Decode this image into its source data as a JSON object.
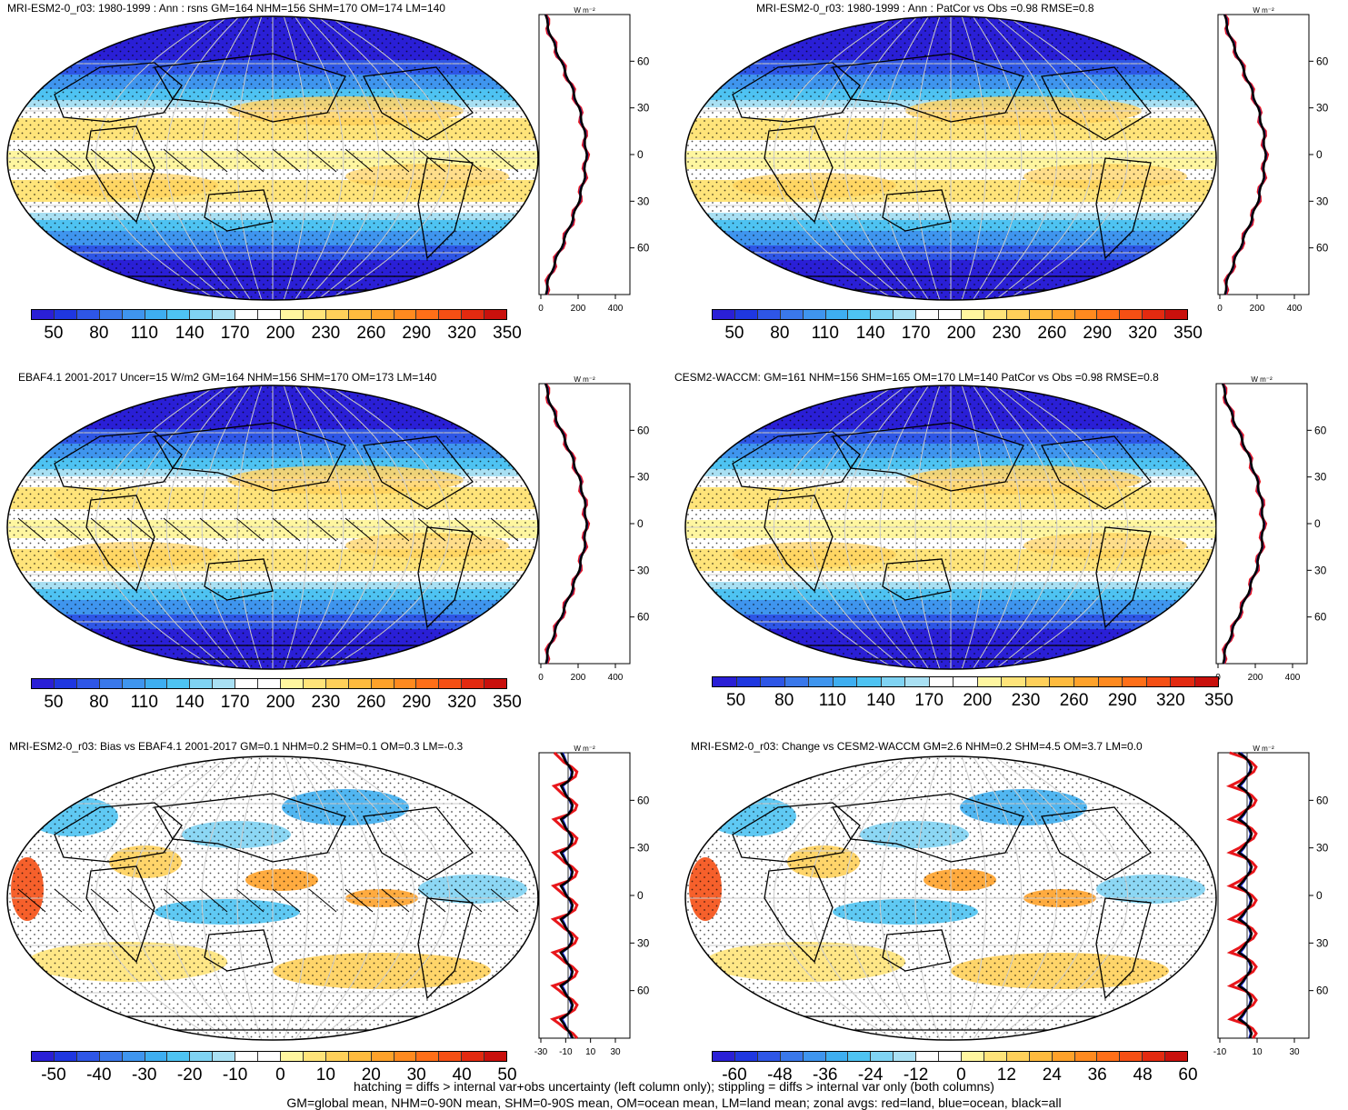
{
  "panels": [
    {
      "id": "p1",
      "title": "MRI-ESM2-0_r03: 1980-1999 : Ann : rsns GM=164 NHM=156 SHM=170 OM=174 LM=140",
      "palette": "abs",
      "colorbar_labels": [
        "50",
        "80",
        "110",
        "140",
        "170",
        "200",
        "230",
        "260",
        "290",
        "320",
        "350"
      ],
      "zonal_units": "W m⁻²",
      "zonal_xticks": [
        "0",
        "200",
        "400"
      ],
      "zonal_yticks": [
        "60N",
        "30N",
        "0",
        "30S",
        "60S"
      ],
      "hatching": true
    },
    {
      "id": "p2",
      "title": "MRI-ESM2-0_r03: 1980-1999 : Ann : PatCor vs Obs =0.98 RMSE=0.8",
      "palette": "abs",
      "colorbar_labels": [
        "50",
        "80",
        "110",
        "140",
        "170",
        "200",
        "230",
        "260",
        "290",
        "320",
        "350"
      ],
      "zonal_units": "W m⁻²",
      "zonal_xticks": [
        "0",
        "200",
        "400"
      ],
      "zonal_yticks": [
        "60N",
        "30N",
        "0",
        "30S",
        "60S"
      ],
      "hatching": false
    },
    {
      "id": "p3",
      "title": "EBAF4.1 2001-2017 Uncer=15 W/m2 GM=164 NHM=156 SHM=170 OM=173 LM=140",
      "palette": "abs",
      "colorbar_labels": [
        "50",
        "80",
        "110",
        "140",
        "170",
        "200",
        "230",
        "260",
        "290",
        "320",
        "350"
      ],
      "zonal_units": "W m⁻²",
      "zonal_xticks": [
        "0",
        "200",
        "400"
      ],
      "zonal_yticks": [
        "60N",
        "30N",
        "0",
        "30S",
        "60S"
      ],
      "hatching": true
    },
    {
      "id": "p4",
      "title": "CESM2-WACCM: GM=161 NHM=156 SHM=165 OM=170 LM=140 PatCor vs Obs =0.98 RMSE=0.8",
      "palette": "abs",
      "colorbar_labels": [
        "50",
        "80",
        "110",
        "140",
        "170",
        "200",
        "230",
        "260",
        "290",
        "320",
        "350"
      ],
      "zonal_units": "W m⁻²",
      "zonal_xticks": [
        "0",
        "200",
        "400"
      ],
      "zonal_yticks": [
        "60N",
        "30N",
        "0",
        "30S",
        "60S"
      ],
      "hatching": false
    },
    {
      "id": "p5",
      "title": "MRI-ESM2-0_r03: Bias vs EBAF4.1 2001-2017 GM=0.1 NHM=0.2 SHM=0.1 OM=0.3 LM=-0.3",
      "palette": "diff",
      "colorbar_labels": [
        "-50",
        "-40",
        "-30",
        "-20",
        "-10",
        "0",
        "10",
        "20",
        "30",
        "40",
        "50"
      ],
      "zonal_units": "W m⁻²",
      "zonal_xticks": [
        "-30",
        "-10",
        "10",
        "30"
      ],
      "zonal_yticks": [
        "60N",
        "30N",
        "0",
        "30S",
        "60S"
      ],
      "hatching": true
    },
    {
      "id": "p6",
      "title": "MRI-ESM2-0_r03: Change vs CESM2-WACCM GM=2.6 NHM=0.2 SHM=4.5 OM=3.7 LM=0.0",
      "palette": "diff",
      "colorbar_labels": [
        "-60",
        "-48",
        "-36",
        "-24",
        "-12",
        "0",
        "12",
        "24",
        "36",
        "48",
        "60"
      ],
      "zonal_units": "W m⁻²",
      "zonal_xticks": [
        "-10",
        "10",
        "30"
      ],
      "zonal_yticks": [
        "60N",
        "30N",
        "0",
        "30S",
        "60S"
      ],
      "hatching": false
    }
  ],
  "colors": {
    "abs_palette": [
      "#2a1fd6",
      "#1f37e0",
      "#2e56e6",
      "#3a78ea",
      "#3f95ee",
      "#3eaef0",
      "#4ec3f2",
      "#7fd3f3",
      "#a9e0f3",
      "#ffffff",
      "#ffffff",
      "#fff6a0",
      "#ffe47a",
      "#ffd05a",
      "#ffbb3e",
      "#ffa22a",
      "#ff8a1f",
      "#ff6f18",
      "#f54f14",
      "#e32a10",
      "#c9100c"
    ],
    "zonal_land": "#e8161b",
    "zonal_ocean": "#1b2fd6",
    "zonal_all": "#000000"
  },
  "footer": {
    "line1": "hatching = diffs > internal var+obs uncertainty (left column only); stippling = diffs > internal var only (both columns)",
    "line2": "GM=global mean, NHM=0-90N mean, SHM=0-90S mean, OM=ocean mean, LM=land mean; zonal avgs: red=land, blue=ocean, black=all"
  }
}
